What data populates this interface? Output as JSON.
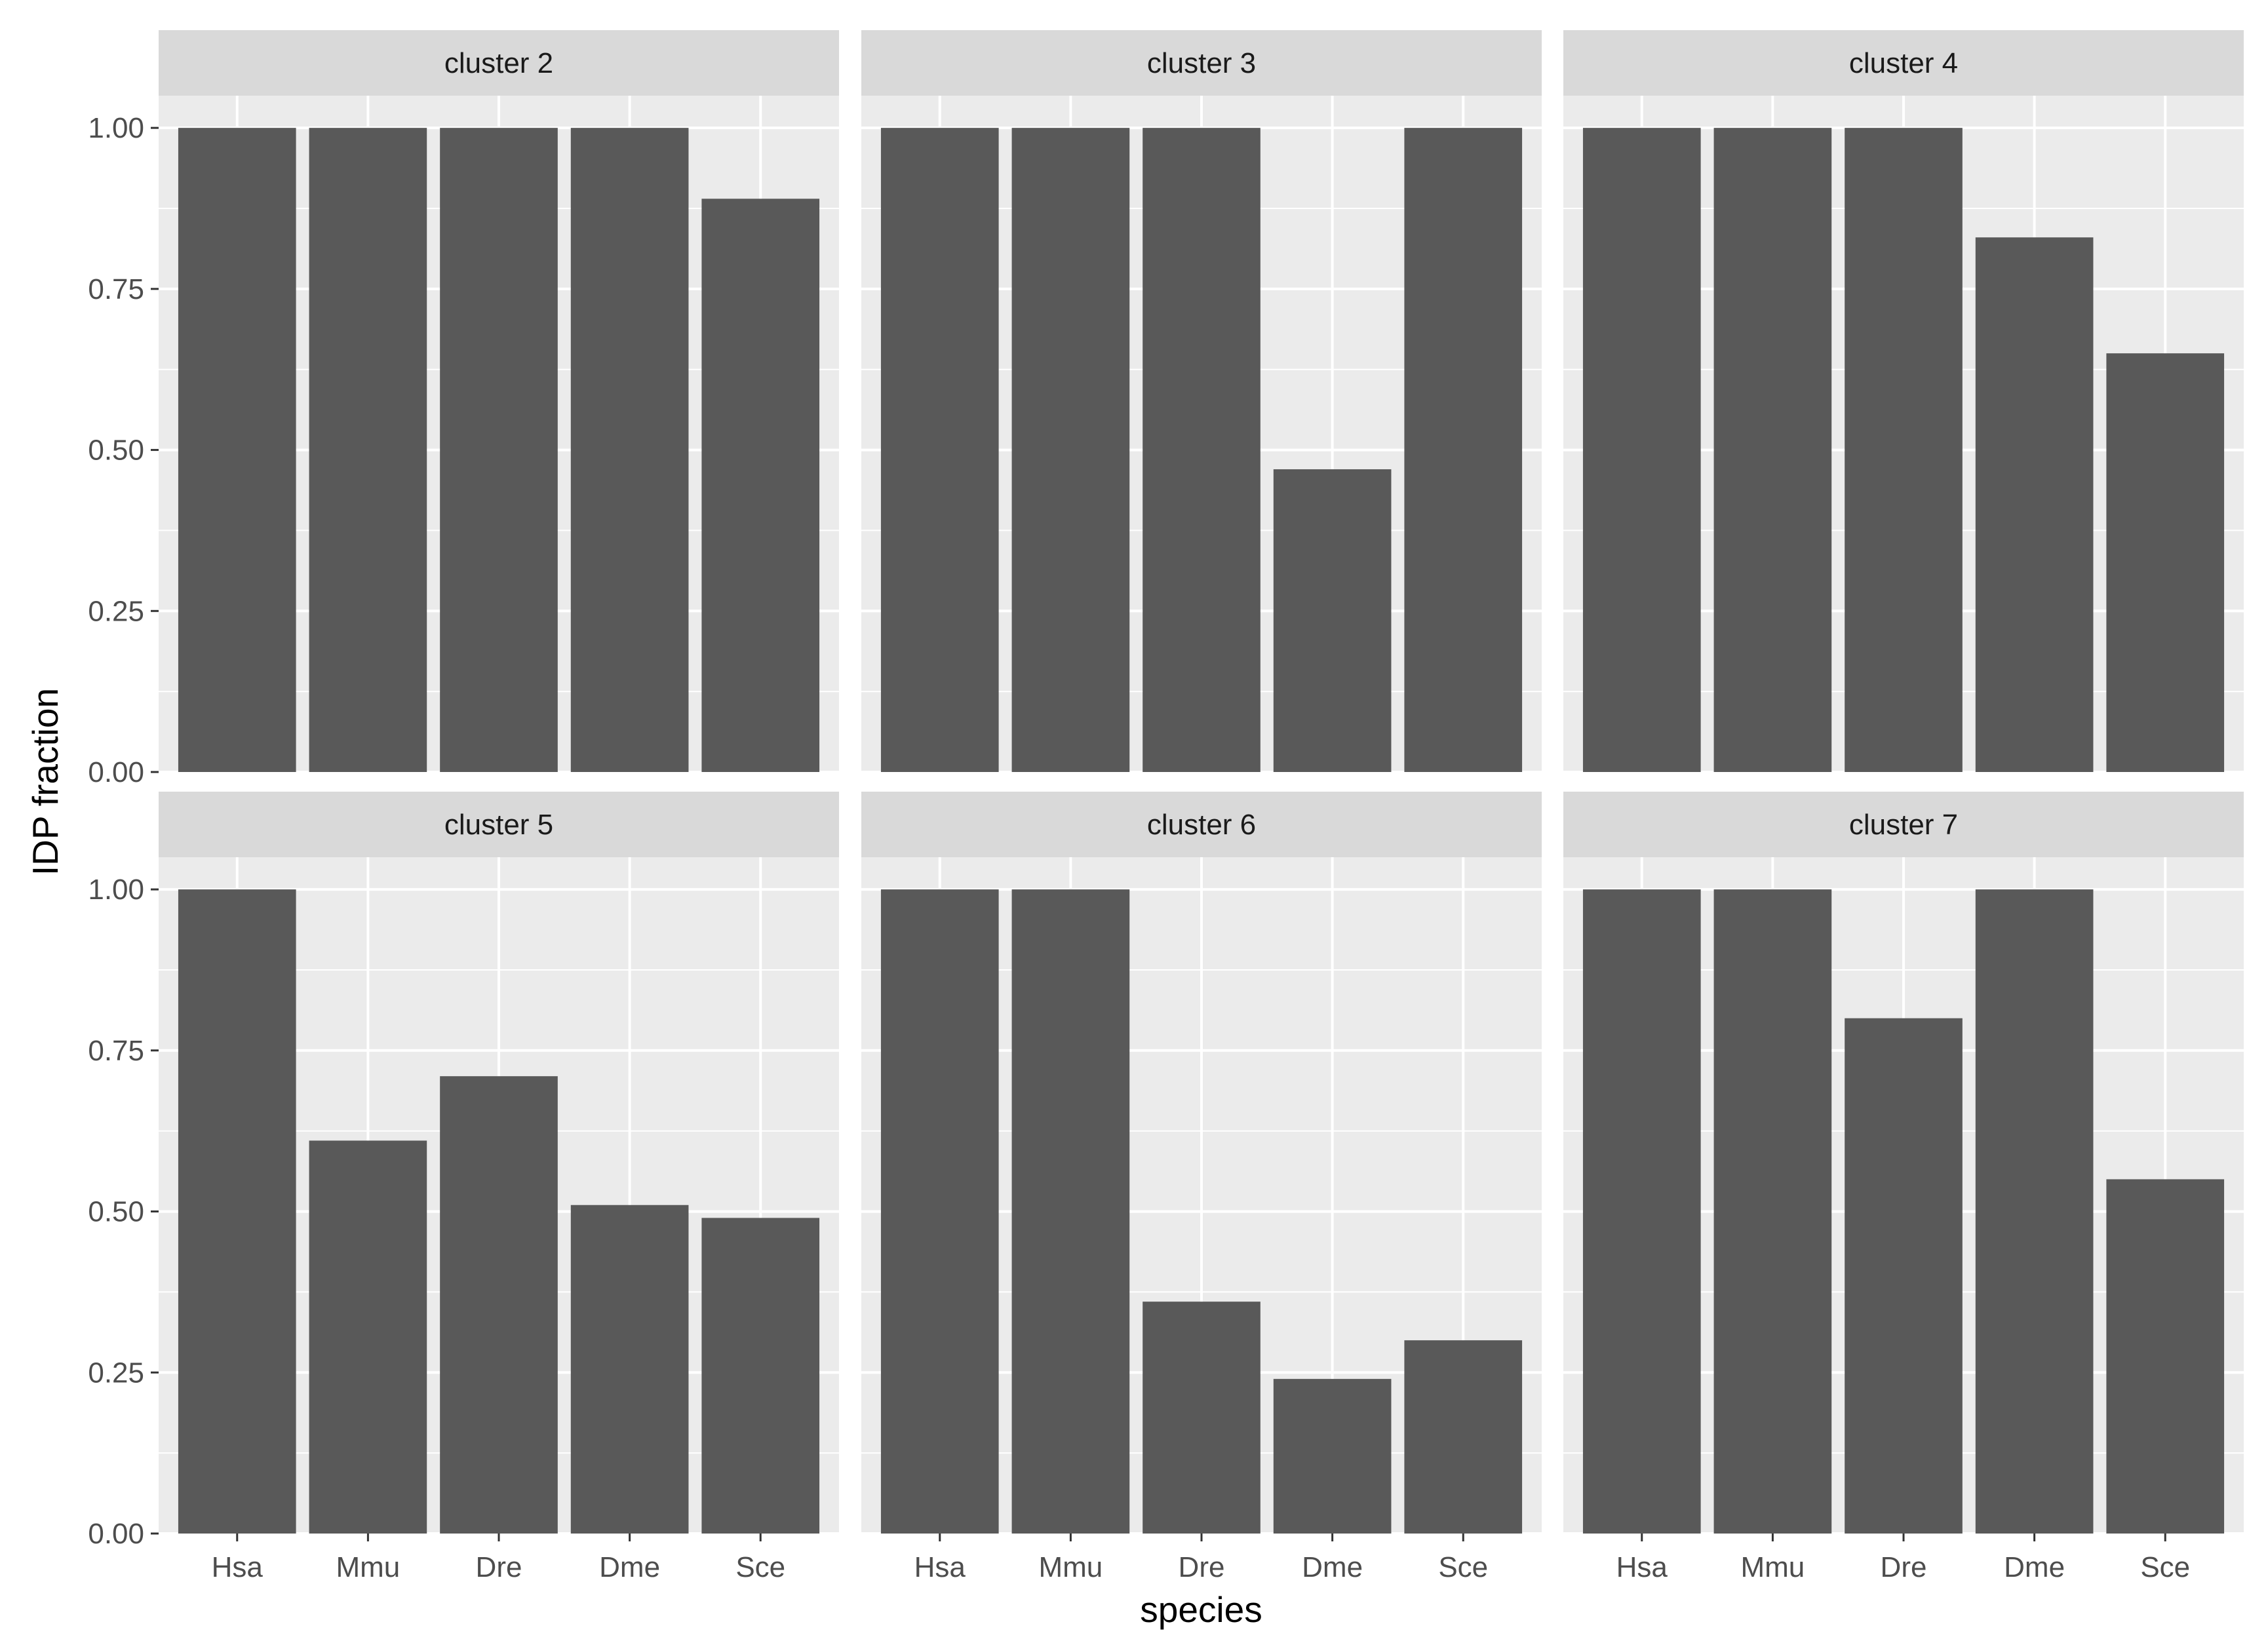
{
  "chart_data": {
    "type": "bar",
    "facet_layout": "3 columns x 2 rows",
    "xlabel": "species",
    "ylabel": "IDP fraction",
    "ylim": [
      0,
      1.05
    ],
    "y_ticks": [
      "0.00",
      "0.25",
      "0.50",
      "0.75",
      "1.00"
    ],
    "y_tick_values": [
      0,
      0.25,
      0.5,
      0.75,
      1.0
    ],
    "categories": [
      "Hsa",
      "Mmu",
      "Dre",
      "Dme",
      "Sce"
    ],
    "colors": {
      "bar": "#595959",
      "panel": "#ebebeb",
      "strip": "#d9d9d9",
      "grid": "#ffffff",
      "tick": "#333333"
    },
    "panels": [
      {
        "title": "cluster 2",
        "values": [
          1.0,
          1.0,
          1.0,
          1.0,
          0.89
        ]
      },
      {
        "title": "cluster 3",
        "values": [
          1.0,
          1.0,
          1.0,
          0.47,
          1.0
        ]
      },
      {
        "title": "cluster 4",
        "values": [
          1.0,
          1.0,
          1.0,
          0.83,
          0.65
        ]
      },
      {
        "title": "cluster 5",
        "values": [
          1.0,
          0.61,
          0.71,
          0.51,
          0.49
        ]
      },
      {
        "title": "cluster 6",
        "values": [
          1.0,
          1.0,
          0.36,
          0.24,
          0.3
        ]
      },
      {
        "title": "cluster 7",
        "values": [
          1.0,
          1.0,
          0.8,
          1.0,
          0.55
        ]
      }
    ]
  }
}
